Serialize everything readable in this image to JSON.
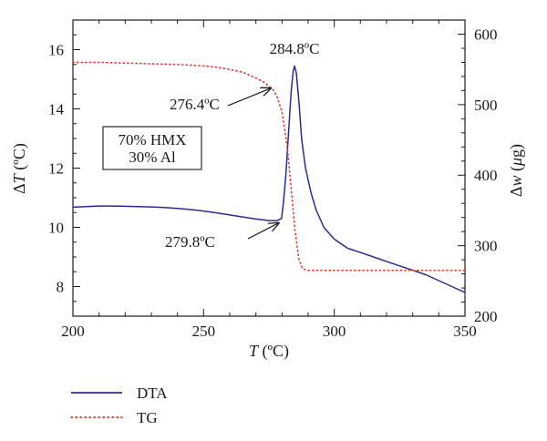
{
  "chart_data": {
    "type": "line",
    "x": {
      "label_var": "T",
      "label_unit": " (ºC)",
      "range": [
        200,
        350
      ],
      "ticks": [
        200,
        250,
        300,
        350
      ],
      "tick_labels": [
        "200",
        "250",
        "300",
        "350"
      ],
      "minor_step": 10
    },
    "y_left": {
      "label_prefix": "Δ",
      "label_var": "T",
      "label_unit": " (ºC)",
      "range": [
        7,
        17
      ],
      "ticks": [
        8,
        10,
        12,
        14,
        16
      ],
      "tick_labels": [
        "8",
        "10",
        "12",
        "14",
        "16"
      ],
      "minor_step": 0.5
    },
    "y_right": {
      "label_prefix": "Δ",
      "label_var": "w",
      "label_unit_open": " (",
      "label_unit_var": "μ",
      "label_unit_close": "g)",
      "range": [
        200,
        620
      ],
      "ticks": [
        200,
        300,
        400,
        500,
        600
      ],
      "tick_labels": [
        "200",
        "300",
        "400",
        "500",
        "600"
      ],
      "minor_step": 20
    },
    "grid": false,
    "series": [
      {
        "name": "DTA",
        "axis": "left",
        "color": "#2b2b8f",
        "style": "solid",
        "points": [
          [
            200,
            10.68
          ],
          [
            205,
            10.7
          ],
          [
            210,
            10.72
          ],
          [
            215,
            10.72
          ],
          [
            220,
            10.71
          ],
          [
            225,
            10.7
          ],
          [
            230,
            10.69
          ],
          [
            235,
            10.67
          ],
          [
            240,
            10.64
          ],
          [
            245,
            10.6
          ],
          [
            250,
            10.55
          ],
          [
            255,
            10.49
          ],
          [
            260,
            10.42
          ],
          [
            265,
            10.35
          ],
          [
            270,
            10.28
          ],
          [
            275,
            10.23
          ],
          [
            278,
            10.22
          ],
          [
            279.8,
            10.3
          ],
          [
            280.5,
            10.8
          ],
          [
            281.5,
            11.8
          ],
          [
            282.5,
            13.2
          ],
          [
            283.5,
            14.6
          ],
          [
            284.3,
            15.3
          ],
          [
            284.8,
            15.45
          ],
          [
            285.5,
            15.2
          ],
          [
            286.5,
            14.2
          ],
          [
            287.5,
            13.0
          ],
          [
            289,
            12.0
          ],
          [
            291,
            11.2
          ],
          [
            293,
            10.6
          ],
          [
            296,
            10.0
          ],
          [
            300,
            9.6
          ],
          [
            305,
            9.3
          ],
          [
            310,
            9.15
          ],
          [
            315,
            9.0
          ],
          [
            320,
            8.85
          ],
          [
            325,
            8.7
          ],
          [
            330,
            8.55
          ],
          [
            335,
            8.4
          ],
          [
            340,
            8.2
          ],
          [
            345,
            8.0
          ],
          [
            350,
            7.8
          ]
        ]
      },
      {
        "name": "TG",
        "axis": "right",
        "color": "#e03a2a",
        "style": "dotted",
        "points": [
          [
            200,
            560
          ],
          [
            210,
            560
          ],
          [
            220,
            559
          ],
          [
            230,
            558
          ],
          [
            240,
            557
          ],
          [
            250,
            555
          ],
          [
            255,
            553
          ],
          [
            260,
            550
          ],
          [
            265,
            546
          ],
          [
            270,
            538
          ],
          [
            273,
            532
          ],
          [
            276.4,
            522
          ],
          [
            278,
            512
          ],
          [
            280,
            490
          ],
          [
            282,
            440
          ],
          [
            283.5,
            380
          ],
          [
            285,
            320
          ],
          [
            286.5,
            280
          ],
          [
            288,
            267
          ],
          [
            290,
            265
          ],
          [
            300,
            265
          ],
          [
            320,
            265
          ],
          [
            340,
            265
          ],
          [
            350,
            265
          ]
        ]
      }
    ],
    "annotations": [
      {
        "text": "284.8ºC",
        "kind": "peak"
      },
      {
        "text": "276.4ºC",
        "kind": "arrow",
        "target": [
          276.4,
          522
        ],
        "axis": "right"
      },
      {
        "text": "279.8ºC",
        "kind": "arrow",
        "target": [
          279.8,
          10.3
        ],
        "axis": "left"
      }
    ],
    "box": {
      "lines": [
        "70% HMX",
        "30% Al"
      ]
    },
    "legend": {
      "position": "bottom-left",
      "entries": [
        "DTA",
        "TG"
      ]
    }
  }
}
